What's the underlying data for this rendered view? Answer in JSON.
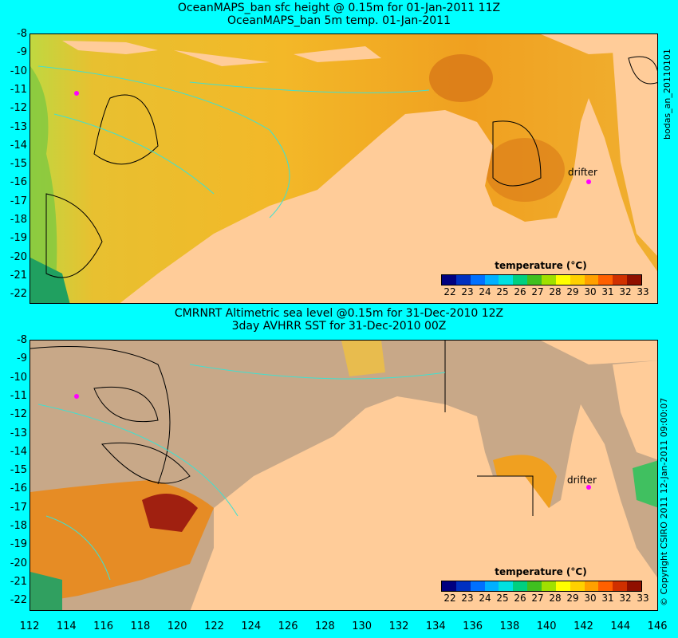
{
  "top_panel": {
    "title_line1": "OceanMAPS_ban sfc height @ 0.15m for 01-Jan-2011 11Z",
    "title_line2": "OceanMAPS_ban 5m temp. 01-Jan-2011",
    "y_ticks": [
      "-8",
      "-9",
      "-10",
      "-11",
      "-12",
      "-13",
      "-14",
      "-15",
      "-16",
      "-17",
      "-18",
      "-19",
      "-20",
      "-21",
      "-22"
    ],
    "drifter_label": "drifter",
    "colorbar_title": "temperature (°C)",
    "side_label": "bodas_an_20110101"
  },
  "bottom_panel": {
    "title_line1": "CMRNRT Altimetric sea level  @0.15m  for 31-Dec-2010 12Z",
    "title_line2": "3day AVHRR SST for 31-Dec-2010 00Z",
    "y_ticks": [
      "-8",
      "-9",
      "-10",
      "-11",
      "-12",
      "-13",
      "-14",
      "-15",
      "-16",
      "-17",
      "-18",
      "-19",
      "-20",
      "-21",
      "-22"
    ],
    "drifter_label": "drifter",
    "colorbar_title": "temperature (°C)",
    "side_label": "© Copyright CSIRO 2011   12-Jan-2011 09:00:07"
  },
  "x_ticks": [
    "112",
    "114",
    "116",
    "118",
    "120",
    "122",
    "124",
    "126",
    "128",
    "130",
    "132",
    "134",
    "136",
    "138",
    "140",
    "142",
    "144",
    "146"
  ],
  "colorbar": {
    "ticks": [
      "22",
      "23",
      "24",
      "25",
      "26",
      "27",
      "28",
      "29",
      "30",
      "31",
      "32",
      "33"
    ],
    "colors": [
      "#000080",
      "#0030c0",
      "#0070ff",
      "#00b0ff",
      "#00e0e0",
      "#00d080",
      "#40c020",
      "#a0e000",
      "#ffff00",
      "#ffd000",
      "#ffa000",
      "#ff6000",
      "#d03000",
      "#901000"
    ]
  },
  "colors": {
    "background": "#00ffff",
    "land": "#ffcc99",
    "no_data": "#c8a888",
    "sea_warm": "#f0a020",
    "sea_mid": "#f5c030",
    "sea_cool": "#a0d040",
    "contour_cyan": "#40e0d0",
    "drifter": "#ff00ff"
  }
}
